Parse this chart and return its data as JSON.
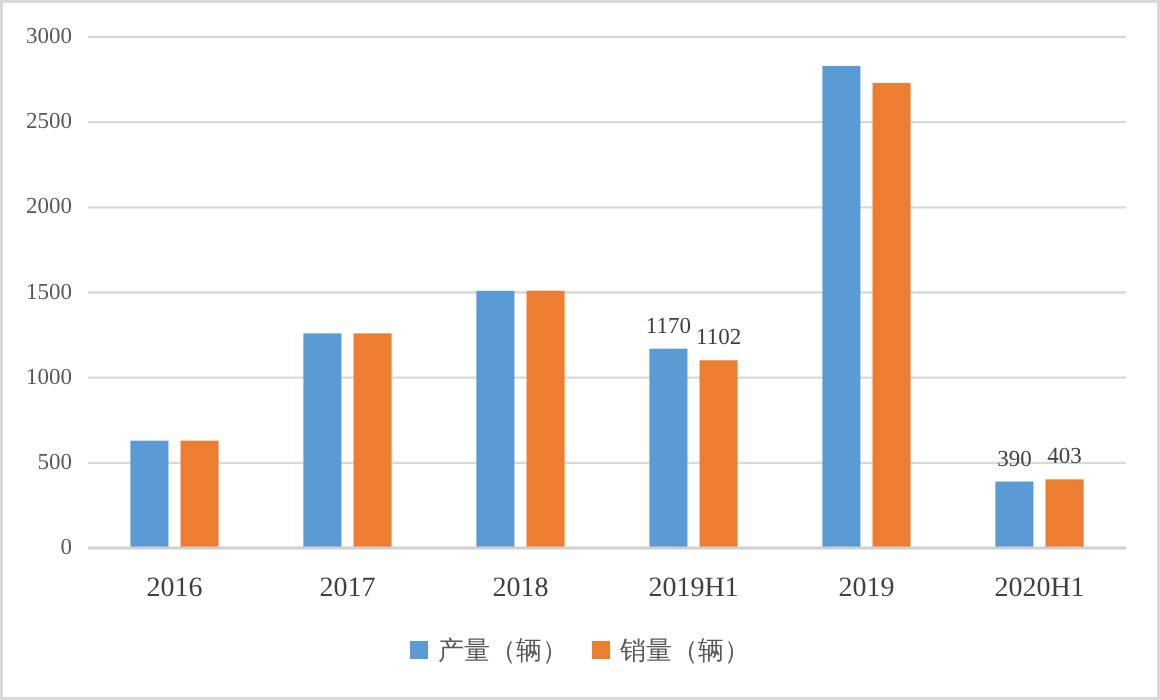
{
  "chart_data": {
    "type": "bar",
    "categories": [
      "2016",
      "2017",
      "2018",
      "2019H1",
      "2019",
      "2020H1"
    ],
    "series": [
      {
        "name": "产量（辆）",
        "color": "#5b9bd5",
        "values": [
          630,
          1260,
          1510,
          1170,
          2830,
          390
        ],
        "value_labels": [
          null,
          null,
          null,
          "1170",
          null,
          "390"
        ]
      },
      {
        "name": "销量（辆）",
        "color": "#ed7d31",
        "values": [
          630,
          1260,
          1510,
          1102,
          2730,
          403
        ],
        "value_labels": [
          null,
          null,
          null,
          "1102",
          null,
          "403"
        ]
      }
    ],
    "ylim": [
      0,
      3000
    ],
    "yticks": [
      0,
      500,
      1000,
      1500,
      2000,
      2500,
      3000
    ],
    "grid": "y",
    "legend": "bottom"
  }
}
